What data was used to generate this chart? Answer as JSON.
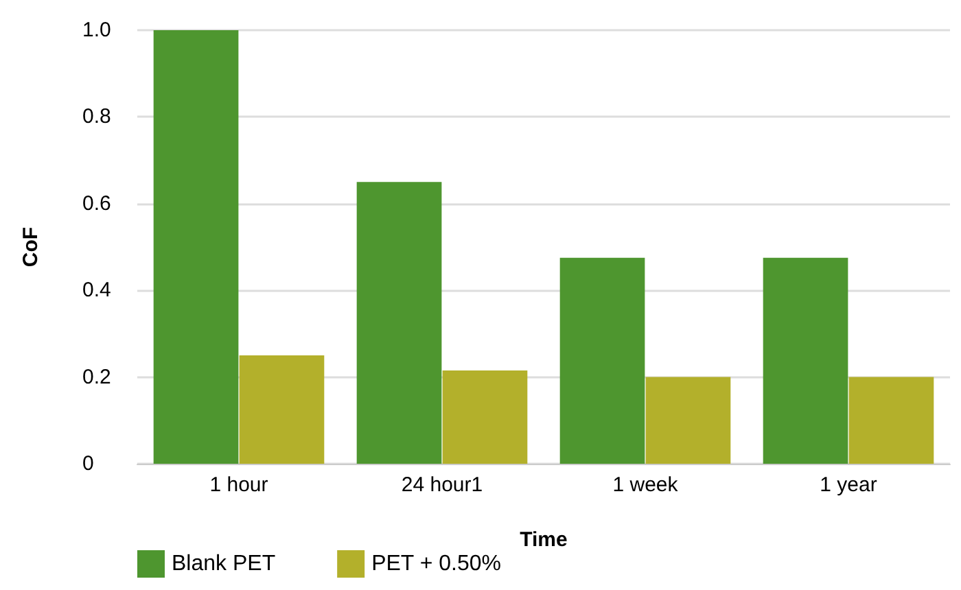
{
  "chart_data": {
    "type": "bar",
    "xlabel": "Time",
    "ylabel": "CoF",
    "categories": [
      "1 hour",
      "24 hour1",
      "1 week",
      "1 year"
    ],
    "series": [
      {
        "name": "Blank PET",
        "color": "#4e962f",
        "values": [
          1.0,
          0.65,
          0.475,
          0.475
        ]
      },
      {
        "name": "PET + 0.50%",
        "color": "#b3b02b",
        "values": [
          0.25,
          0.215,
          0.2,
          0.2
        ]
      }
    ],
    "ylim": [
      0,
      1.0
    ],
    "yticks": [
      0,
      0.2,
      0.4,
      0.6,
      0.8,
      {
        "value": 1,
        "label": "1.0"
      }
    ],
    "grid": "y",
    "legend": "bottom left"
  }
}
